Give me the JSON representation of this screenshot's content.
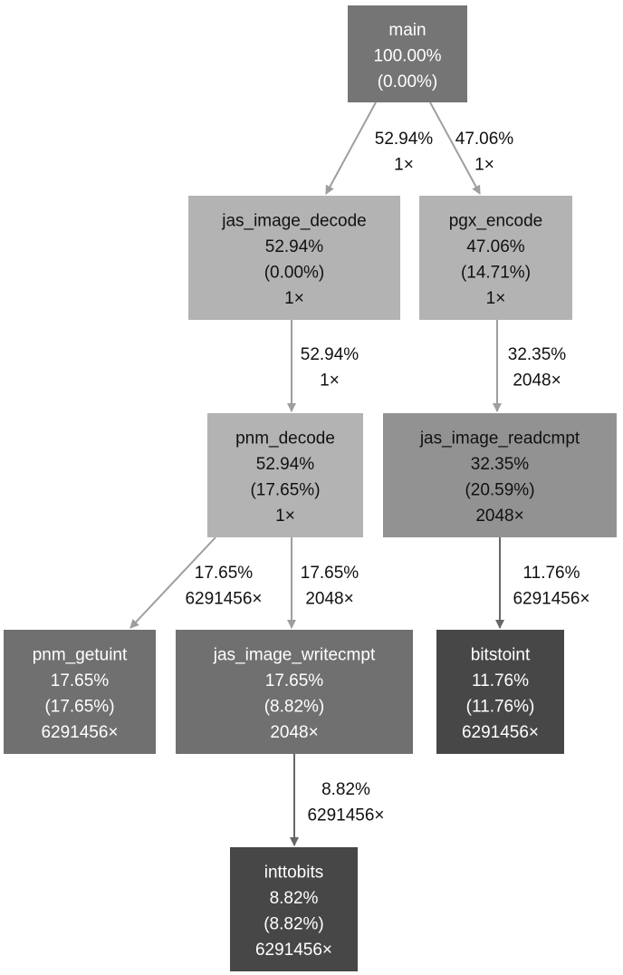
{
  "nodes": [
    {
      "id": "main",
      "lines": [
        "main",
        "100.00%",
        "(0.00%)"
      ],
      "fill": "#757575",
      "text_color": "#ffffff"
    },
    {
      "id": "jas_image_decode",
      "lines": [
        "jas_image_decode",
        "52.94%",
        "(0.00%)",
        "1×"
      ],
      "fill": "#b3b3b3",
      "text_color": "#111111"
    },
    {
      "id": "pgx_encode",
      "lines": [
        "pgx_encode",
        "47.06%",
        "(14.71%)",
        "1×"
      ],
      "fill": "#b3b3b3",
      "text_color": "#111111"
    },
    {
      "id": "pnm_decode",
      "lines": [
        "pnm_decode",
        "52.94%",
        "(17.65%)",
        "1×"
      ],
      "fill": "#b3b3b3",
      "text_color": "#111111"
    },
    {
      "id": "jas_image_readcmpt",
      "lines": [
        "jas_image_readcmpt",
        "32.35%",
        "(20.59%)",
        "2048×"
      ],
      "fill": "#929292",
      "text_color": "#111111"
    },
    {
      "id": "pnm_getuint",
      "lines": [
        "pnm_getuint",
        "17.65%",
        "(17.65%)",
        "6291456×"
      ],
      "fill": "#707070",
      "text_color": "#ffffff"
    },
    {
      "id": "jas_image_writecmpt",
      "lines": [
        "jas_image_writecmpt",
        "17.65%",
        "(8.82%)",
        "2048×"
      ],
      "fill": "#707070",
      "text_color": "#ffffff"
    },
    {
      "id": "bitstoint",
      "lines": [
        "bitstoint",
        "11.76%",
        "(11.76%)",
        "6291456×"
      ],
      "fill": "#474747",
      "text_color": "#ffffff"
    },
    {
      "id": "inttobits",
      "lines": [
        "inttobits",
        "8.82%",
        "(8.82%)",
        "6291456×"
      ],
      "fill": "#474747",
      "text_color": "#ffffff"
    }
  ],
  "edges": [
    {
      "from": "main",
      "to": "jas_image_decode",
      "lines": [
        "52.94%",
        "1×"
      ]
    },
    {
      "from": "main",
      "to": "pgx_encode",
      "lines": [
        "47.06%",
        "1×"
      ]
    },
    {
      "from": "jas_image_decode",
      "to": "pnm_decode",
      "lines": [
        "52.94%",
        "1×"
      ]
    },
    {
      "from": "pgx_encode",
      "to": "jas_image_readcmpt",
      "lines": [
        "32.35%",
        "2048×"
      ]
    },
    {
      "from": "pnm_decode",
      "to": "pnm_getuint",
      "lines": [
        "17.65%",
        "6291456×"
      ]
    },
    {
      "from": "pnm_decode",
      "to": "jas_image_writecmpt",
      "lines": [
        "17.65%",
        "2048×"
      ]
    },
    {
      "from": "jas_image_readcmpt",
      "to": "bitstoint",
      "lines": [
        "11.76%",
        "6291456×"
      ]
    },
    {
      "from": "jas_image_writecmpt",
      "to": "inttobits",
      "lines": [
        "8.82%",
        "6291456×"
      ]
    }
  ],
  "colors": {
    "edge": "#9e9e9e",
    "edge_dark": "#666666",
    "edge_text": "#111111"
  }
}
